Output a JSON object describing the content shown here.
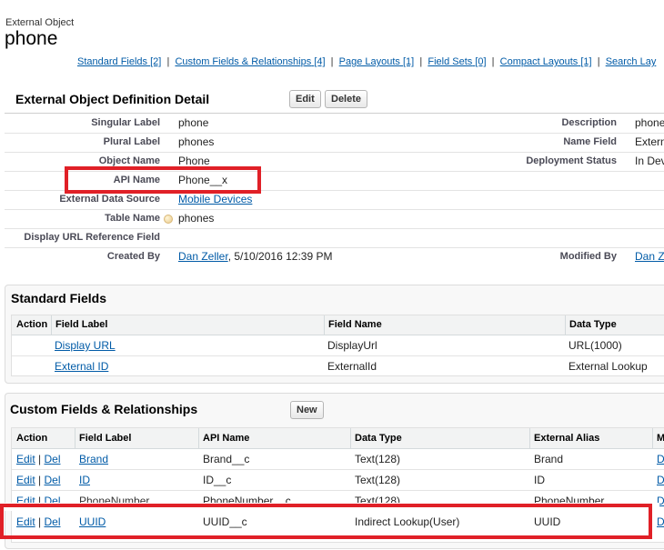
{
  "header": {
    "object_type": "External Object",
    "title": "phone"
  },
  "related_links": [
    {
      "label": "Standard Fields",
      "count": "[2]"
    },
    {
      "label": "Custom Fields & Relationships",
      "count": "[4]"
    },
    {
      "label": "Page Layouts",
      "count": "[1]"
    },
    {
      "label": "Field Sets",
      "count": "[0]"
    },
    {
      "label": "Compact Layouts",
      "count": "[1]"
    },
    {
      "label": "Search Lay"
    }
  ],
  "detail": {
    "title": "External Object Definition Detail",
    "edit_label": "Edit",
    "delete_label": "Delete",
    "left": [
      {
        "label": "Singular Label",
        "value": "phone"
      },
      {
        "label": "Plural Label",
        "value": "phones"
      },
      {
        "label": "Object Name",
        "value": "Phone"
      },
      {
        "label": "API Name",
        "value": "Phone__x"
      },
      {
        "label": "External Data Source",
        "value": "Mobile Devices"
      },
      {
        "label": "Table Name",
        "value": "phones"
      },
      {
        "label": "Display URL Reference Field",
        "value": ""
      },
      {
        "label": "Created By",
        "value": "Dan Zeller",
        "extra": ", 5/10/2016 12:39 PM"
      }
    ],
    "right": [
      {
        "label": "Description",
        "value": "phone"
      },
      {
        "label": "Name Field",
        "value": "Extern"
      },
      {
        "label": "Deployment Status",
        "value": "In Dev"
      },
      {
        "label": "Modified By",
        "value": "Dan Z"
      }
    ]
  },
  "standard_fields": {
    "title": "Standard Fields",
    "columns": [
      "Action",
      "Field Label",
      "Field Name",
      "Data Type"
    ],
    "rows": [
      {
        "label": "Display URL",
        "name": "DisplayUrl",
        "type": "URL(1000)"
      },
      {
        "label": "External ID",
        "name": "ExternalId",
        "type": "External Lookup"
      }
    ]
  },
  "custom_fields": {
    "title": "Custom Fields & Relationships",
    "new_label": "New",
    "columns": [
      "Action",
      "Field Label",
      "API Name",
      "Data Type",
      "External Alias",
      "M"
    ],
    "edit_label": "Edit",
    "del_label": "Del",
    "rows": [
      {
        "label": "Brand",
        "api": "Brand__c",
        "type": "Text(128)",
        "alias": "Brand",
        "m": "D"
      },
      {
        "label": "ID",
        "api": "ID__c",
        "type": "Text(128)",
        "alias": "ID",
        "m": "D"
      },
      {
        "label": "PhoneNumber",
        "api": "PhoneNumber__c",
        "type": "Text(128)",
        "alias": "PhoneNumber",
        "m": "D"
      },
      {
        "label": "UUID",
        "api": "UUID__c",
        "type": "Indirect Lookup(User)",
        "alias": "UUID",
        "m": "D"
      }
    ]
  },
  "colors": {
    "link": "#015ba7",
    "highlight": "#e02027"
  }
}
